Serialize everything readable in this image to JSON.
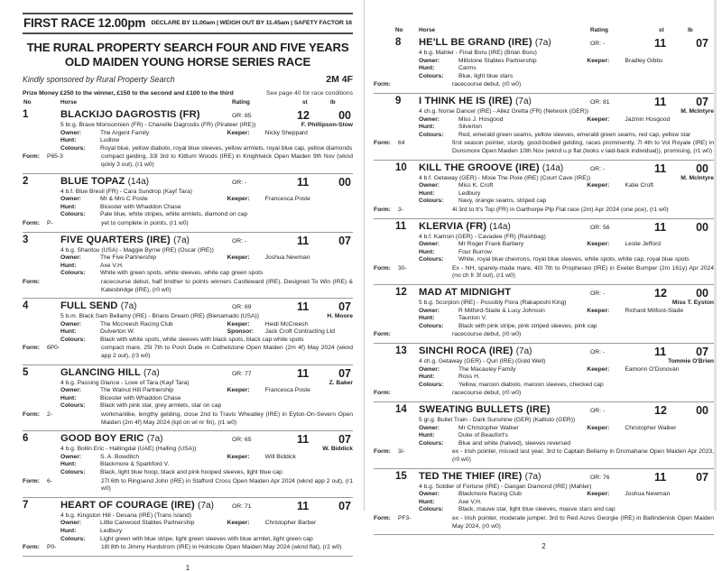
{
  "header": {
    "race_label": "FIRST RACE 12.00pm",
    "declare_info": "DECLARE BY 11.00am | WEIGH OUT BY 11.45am | SAFETY FACTOR 16",
    "title_line1": "THE RURAL PROPERTY SEARCH FOUR AND FIVE YEARS",
    "title_line2": "OLD MAIDEN YOUNG HORSE SERIES RACE",
    "sponsor_note": "Kindly sponsored by Rural Property Search",
    "distance": "2M 4F",
    "prize_money": "Prize Money £250 to the winner, £150 to the second and £100 to the third",
    "conditions_note": "See page 40 for race conditions"
  },
  "columns": {
    "no": "No",
    "horse": "Horse",
    "rating": "Rating",
    "st": "st",
    "lb": "lb"
  },
  "labels": {
    "owner": "Owner:",
    "keeper": "Keeper:",
    "hunt": "Hunt:",
    "sponsor": "Sponsor:",
    "colours": "Colours:",
    "form": "Form:"
  },
  "pages": {
    "left_number": "1",
    "right_number": "2"
  },
  "entries": [
    {
      "page": "left",
      "no": "1",
      "name": "BLACKIJO DAGROSTIS (FR)",
      "tag": "",
      "or": "OR: 85",
      "st": "12",
      "lb": "00",
      "breeding": "5 br.g. Brave Monsonnien (FR) - Chanelle Dagrostis (FR) (Pirateer (IRE))",
      "rider": "F. Phillipson-Stow",
      "owner": "The Argent Family",
      "keeper": "Nicky Sheppard",
      "hunt": "Ludlow",
      "sponsor": "",
      "colours": "Royal blue, yellow diabolo, royal blue sleeves, yellow armlets, royal blue cap, yellow diamonds",
      "form_fig": "P65-3",
      "form_text": "compact gelding, 33l 3rd to Kittlum Woods (IRE) in Knightwick Open Maiden 9th Nov (wknd qckly 3 out), (r1 w0)"
    },
    {
      "page": "left",
      "no": "2",
      "name": "BLUE TOPAZ",
      "tag": "(14a)",
      "or": "OR: -",
      "st": "11",
      "lb": "00",
      "breeding": "4 b.f. Blue Bresil (FR) - Cara Sundrop (Kayf Tara)",
      "rider": "",
      "owner": "Mr & Mrs C Poste",
      "keeper": "Francesca Poste",
      "hunt": "Bicester with Whaddon Chase",
      "sponsor": "",
      "colours": "Pale blue, white stripes, white armlets, diamond on cap",
      "form_fig": "P-",
      "form_text": "yet to complete in points, (r1 w0)"
    },
    {
      "page": "left",
      "no": "3",
      "name": "FIVE QUARTERS (IRE)",
      "tag": "(7a)",
      "or": "OR: -",
      "st": "11",
      "lb": "07",
      "breeding": "4 b.g. Shantou (USA) - Maggie Byrne (IRE) (Oscar (IRE))",
      "rider": "",
      "owner": "The Five Partnership",
      "keeper": "Joshua Newman",
      "hunt": "Axe V.H.",
      "sponsor": "",
      "colours": "White with green spots, white sleeves, white cap green spots",
      "form_fig": "",
      "form_text": "racecourse debut, half brother to points winners Castleward (IRE), Designed To Win (IRE) & Katesbridge (IRE), (r0 w0)"
    },
    {
      "page": "left",
      "no": "4",
      "name": "FULL SEND",
      "tag": "(7a)",
      "or": "OR: 69",
      "st": "11",
      "lb": "07",
      "breeding": "5 b.m. Black Sam Bellamy (IRE) - Brians Dream (IRE) (Bienamado (USA))",
      "rider": "H. Moore",
      "owner": "The Mccreesh Racing Club",
      "keeper": "Heidi McCreesh",
      "hunt": "Dulverton W.",
      "sponsor": "Jack Croft Contracting Ltd",
      "colours": "Black with white spots, white sleeves with black spots, black cap white spots",
      "form_fig": "6P0-",
      "form_text": "compact mare, 25l 7th to Posh Dude in Cothelstone Open Maiden (2m 4f) May 2024 (wknd app 2 out), (r3 w0)"
    },
    {
      "page": "left",
      "no": "5",
      "name": "GLANCING HILL",
      "tag": "(7a)",
      "or": "OR: 77",
      "st": "11",
      "lb": "07",
      "breeding": "4 b.g. Passing Glance - Love of Tara (Kayf Tara)",
      "rider": "Z. Baker",
      "owner": "The Walnut Hill Partnership",
      "keeper": "Francesca Poste",
      "hunt": "Bicester with Whaddon Chase",
      "sponsor": "",
      "colours": "Black with pink star, grey armlets, star on cap",
      "form_fig": "2-",
      "form_text": "workmanlike, lengthy gelding, close 2nd to Travis Wheatley (IRE) in Eyton-On-Severn Open Maiden (2m 4f) May 2024 (kpt on wl nr fin), (r1 w0)"
    },
    {
      "page": "left",
      "no": "6",
      "name": "GOOD BOY ERIC",
      "tag": "(7a)",
      "or": "OR: 65",
      "st": "11",
      "lb": "07",
      "breeding": "4 b.g. Bollin Eric - Hallingdal (UAE) (Halling (USA))",
      "rider": "W. Biddick",
      "owner": "S. A. Bowditch",
      "keeper": "Will Biddick",
      "hunt": "Blackmore & Sparkford V.",
      "sponsor": "",
      "colours": "Black, light blue hoop, black and pink hooped sleeves, light blue cap",
      "form_fig": "6-",
      "form_text": "27l 6th to Ringsend John (IRE) in Stafford Cross Open Maiden Apr 2024 (wknd app 2 out), (r1 w0)"
    },
    {
      "page": "left",
      "no": "7",
      "name": "HEART OF COURAGE (IRE)",
      "tag": "(7a)",
      "or": "OR: 71",
      "st": "11",
      "lb": "07",
      "breeding": "4 b.g. Kingston Hill - Desana (IRE) (Trans Island)",
      "rider": "",
      "owner": "Little Canwood Stables Partnership",
      "keeper": "Christopher Barber",
      "hunt": "Ledbury",
      "sponsor": "",
      "colours": "Light green with blue stripe, light green sleeves with blue armlet, light green cap",
      "form_fig": "P0-",
      "form_text": "18l 8th to Jimmy Hurdstrom (IRE) in Holnicote Open Maiden May 2024 (wknd flat), (r2 w0)"
    },
    {
      "page": "right",
      "no": "8",
      "name": "HE'LL BE GRAND (IRE)",
      "tag": "(7a)",
      "or": "OR: -",
      "st": "11",
      "lb": "07",
      "breeding": "4 b.g. Mahler - Final Boru (IRE) (Brian Boru)",
      "rider": "",
      "owner": "Millstone Stables Partnership",
      "keeper": "Bradley Gibbs",
      "hunt": "Carms",
      "sponsor": "",
      "colours": "Blue, light blue stars",
      "form_fig": "",
      "form_text": "racecourse debut, (r0 w0)"
    },
    {
      "page": "right",
      "no": "9",
      "name": "I THINK HE IS (IRE)",
      "tag": "(7a)",
      "or": "OR: 81",
      "st": "11",
      "lb": "07",
      "breeding": "4 ch.g. Norse Dancer (IRE) - Allez Gretta (FR) (Network (GER))",
      "rider": "M. McIntyre",
      "owner": "Miss J. Hosgood",
      "keeper": "Jazmin Hosgood",
      "hunt": "Silverton",
      "sponsor": "",
      "colours": "Red, emerald green seams, yellow sleeves, emerald green seams, red cap, yellow star",
      "form_fig": "64",
      "form_text": "first season pointer, sturdy, good-bodied gelding, races prominently, 7l 4th to Vol Royale (IRE) in Dunsmore Open Maiden 10th Nov (wknd u.p flat (looks v laid-back individual)), promising, (r1 w0)"
    },
    {
      "page": "right",
      "no": "10",
      "name": "KILL THE GROOVE (IRE)",
      "tag": "(14a)",
      "or": "OR: -",
      "st": "11",
      "lb": "00",
      "breeding": "4 b.f. Getaway (GER) - Mixie The Pixie (IRE) (Court Cave (IRE))",
      "rider": "M. McIntyre",
      "owner": "Miss K. Croft",
      "keeper": "Katie Croft",
      "hunt": "Ledbury",
      "sponsor": "",
      "colours": "Navy, orange seams, striped cap",
      "form_fig": "3-",
      "form_text": "4l 3rd to It's Top (FR) in Garthorpe Ptp Flat race (2m) Apr 2024 (one pce), (r1 w0)"
    },
    {
      "page": "right",
      "no": "11",
      "name": "KLERVIA (FR)",
      "tag": "(14a)",
      "or": "OR: 56",
      "st": "11",
      "lb": "00",
      "breeding": "4 b.f. Kamsin (GER) - Cavadee (FR) (Rashbag)",
      "rider": "",
      "owner": "Mr Roger Frank Barbery",
      "keeper": "Leslie Jefford",
      "hunt": "Four Burrow",
      "sponsor": "",
      "colours": "White, royal blue chevrons, royal blue sleeves, white spots, white cap, royal blue spots",
      "form_fig": "30-",
      "form_text": "Ex - NH, sparely-made mare, 40l 7th to Propheseo (IRE) in Exeter Bumper (2m 161y) Apr 2024 (no ch fr 3f out), (r1 w0)"
    },
    {
      "page": "right",
      "no": "12",
      "name": "MAD AT MIDNIGHT",
      "tag": "",
      "or": "OR: -",
      "st": "12",
      "lb": "00",
      "breeding": "5 b.g. Scorpion (IRE) - Possibly Flora (Rakaposhi King)",
      "rider": "Miss T. Eyston",
      "owner": "R Mitford-Slade & Lucy Johnson",
      "keeper": "Richard Mitford-Slade",
      "hunt": "Taunton V.",
      "sponsor": "",
      "colours": "Black with pink stripe, pink striped sleeves, pink cap",
      "form_fig": "",
      "form_text": "racecourse debut, (r0 w0)"
    },
    {
      "page": "right",
      "no": "13",
      "name": "SINCHI ROCA (IRE)",
      "tag": "(7a)",
      "or": "OR: -",
      "st": "11",
      "lb": "07",
      "breeding": "4 ch.g. Getaway (GER) - Quri (IRE) (Gold Well)",
      "rider": "Tommie O'Brien",
      "owner": "The Macauley Family",
      "keeper": "Eamonn O'Donovan",
      "hunt": "Ross H.",
      "sponsor": "",
      "colours": "Yellow, maroon diabolo, maroon sleeves, checked cap",
      "form_fig": "",
      "form_text": "racecourse debut, (r0 w0)"
    },
    {
      "page": "right",
      "no": "14",
      "name": "SWEATING BULLETS (IRE)",
      "tag": "",
      "or": "OR: -",
      "st": "12",
      "lb": "00",
      "breeding": "5 gr.g. Bullet Train - Dark Sunshine (GER) (Kallisto (GER))",
      "rider": "",
      "owner": "Mr Christopher Walker",
      "keeper": "Christopher Walker",
      "hunt": "Duke of Beaufort's",
      "sponsor": "",
      "colours": "Blue and white (halved), sleeves reversed",
      "form_fig": "3/-",
      "form_text": "ex - Irish pointer, missed last year, 3rd to Captain Bellamy in Dromahane Open Maiden Apr 2023, (r0 w0)"
    },
    {
      "page": "right",
      "no": "15",
      "name": "TED THE THIEF (IRE)",
      "tag": "(7a)",
      "or": "OR: 76",
      "st": "11",
      "lb": "07",
      "breeding": "4 b.g. Soldier of Fortune (IRE) - Dangan Diamond (IRE) (Mahler)",
      "rider": "",
      "owner": "Blackmore Racing Club",
      "keeper": "Joshua Newman",
      "hunt": "Axe V.H.",
      "sponsor": "",
      "colours": "Black, mauve star, light blue sleeves, mauve stars and cap",
      "form_fig": "PF3-",
      "form_text": "ex - Irish pointer, moderate jumper, 3rd to Red Acres Georgie (IRE) in Ballindenisk Open Maiden May 2024, (r0 w0)"
    }
  ]
}
